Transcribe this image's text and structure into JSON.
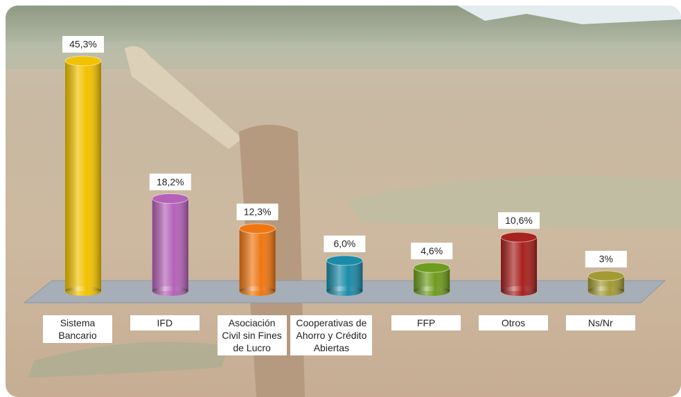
{
  "chart_data": {
    "type": "bar",
    "categories": [
      "Sistema Bancario",
      "IFD",
      "Asociación Civil sin Fines de Lucro",
      "Cooperativas de Ahorro y Crédito Abiertas",
      "FFP",
      "Otros",
      "Ns/Nr"
    ],
    "values": [
      45.3,
      18.2,
      12.3,
      6.0,
      4.6,
      10.6,
      3
    ],
    "value_labels": [
      "45,3%",
      "18,2%",
      "12,3%",
      "6,0%",
      "4,6%",
      "10,6%",
      "3%"
    ],
    "colors": [
      "#f2c200",
      "#b462b8",
      "#ef7712",
      "#1c8ba8",
      "#6e9c1e",
      "#a8221f",
      "#a39a34"
    ]
  }
}
